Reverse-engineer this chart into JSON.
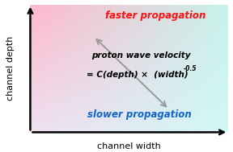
{
  "xlabel": "channel width",
  "ylabel": "channel depth",
  "faster_label": "faster propagation",
  "slower_label": "slower propagation",
  "equation_line1": "proton wave velocity",
  "equation_line2": "= C(depth) ×  (width)",
  "equation_exp": "-0.5",
  "faster_color": "#ff1111",
  "slower_color": "#1166cc",
  "equation_color": "#000000",
  "arrow_color": "#999999",
  "tl": [
    1.0,
    0.72,
    0.8
  ],
  "tr": [
    0.78,
    0.95,
    0.92
  ],
  "bl": [
    0.94,
    0.88,
    0.94
  ],
  "br": [
    0.82,
    0.97,
    0.97
  ],
  "figsize": [
    2.88,
    1.89
  ],
  "dpi": 100
}
